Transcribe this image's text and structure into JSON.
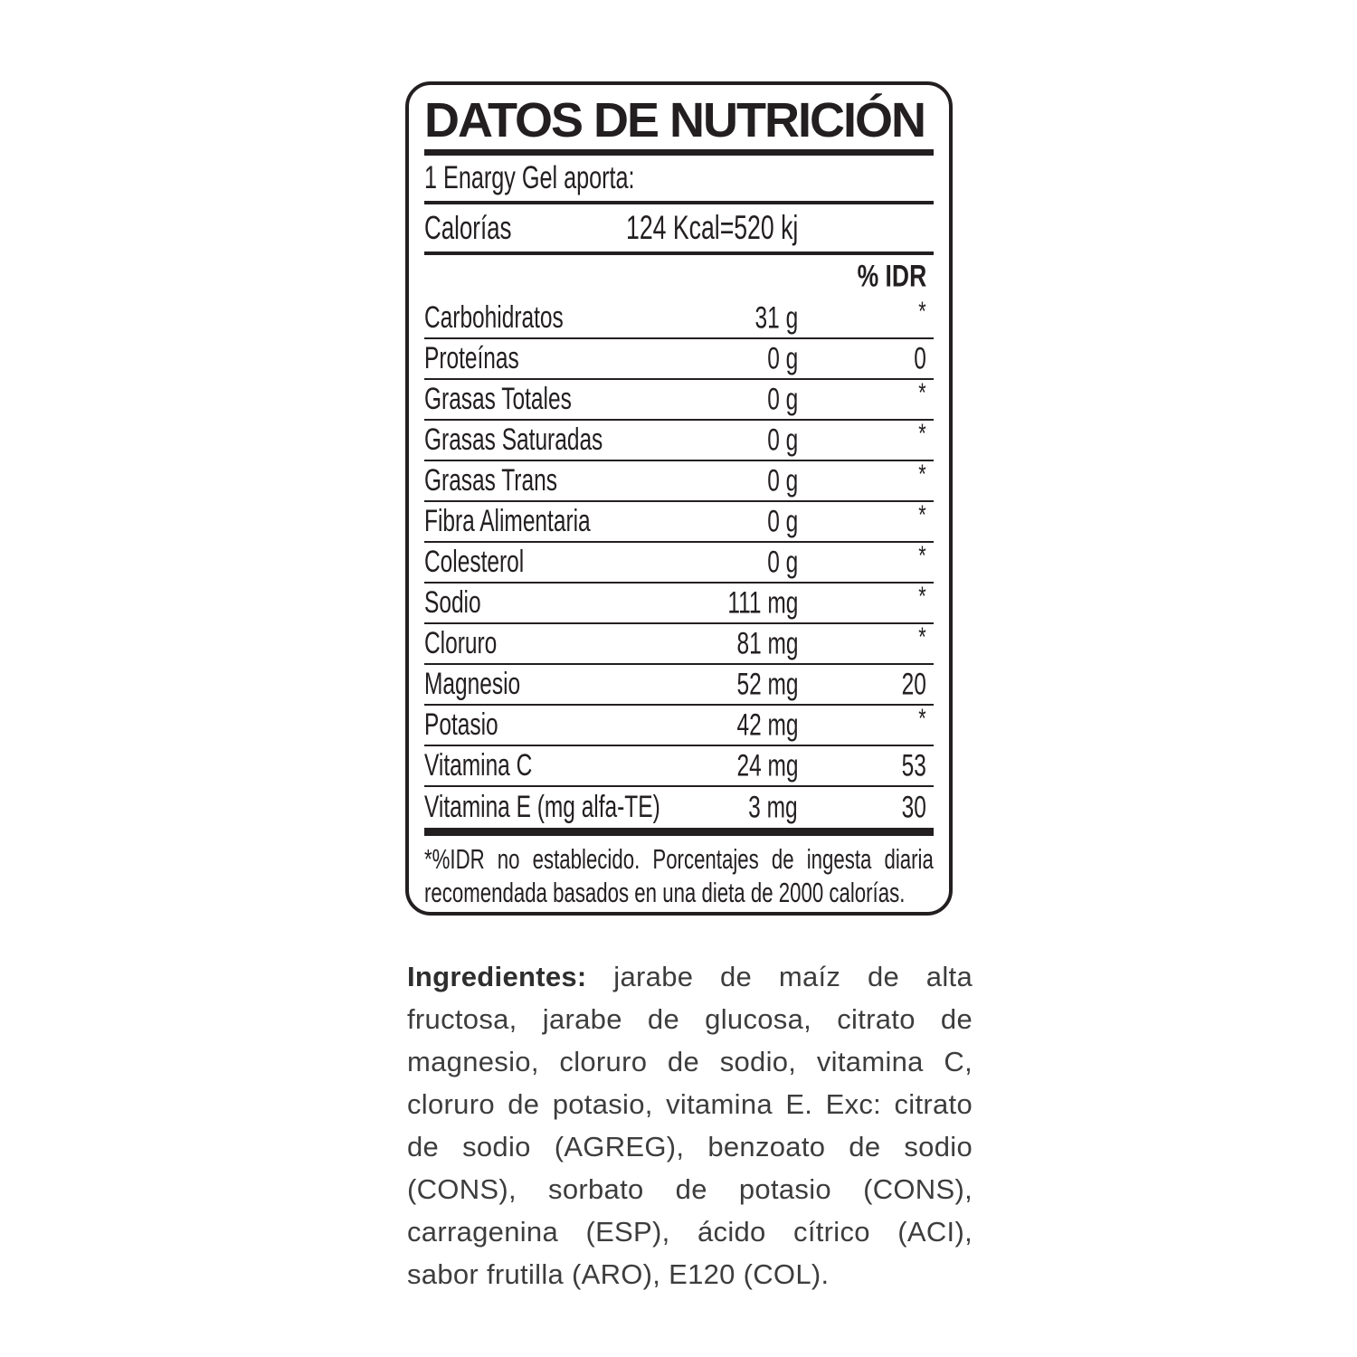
{
  "panel": {
    "title": "DATOS DE NUTRICIÓN",
    "serving": "1 Enargy Gel aporta:",
    "calories": {
      "label": "Calorías",
      "value": "124 Kcal=520 kj"
    },
    "idr_header": "% IDR",
    "rows": [
      {
        "label": "Carbohidratos",
        "amount": "31 g",
        "idr": "*"
      },
      {
        "label": "Proteínas",
        "amount": "0 g",
        "idr": "0"
      },
      {
        "label": "Grasas Totales",
        "amount": "0 g",
        "idr": "*"
      },
      {
        "label": "Grasas Saturadas",
        "amount": "0 g",
        "idr": "*"
      },
      {
        "label": "Grasas Trans",
        "amount": "0 g",
        "idr": "*"
      },
      {
        "label": "Fibra Alimentaria",
        "amount": "0 g",
        "idr": "*"
      },
      {
        "label": "Colesterol",
        "amount": "0 g",
        "idr": "*"
      },
      {
        "label": "Sodio",
        "amount": "111 mg",
        "idr": "*"
      },
      {
        "label": "Cloruro",
        "amount": "81 mg",
        "idr": "*"
      },
      {
        "label": "Magnesio",
        "amount": "52 mg",
        "idr": "20"
      },
      {
        "label": "Potasio",
        "amount": "42 mg",
        "idr": "*"
      },
      {
        "label": "Vitamina C",
        "amount": "24 mg",
        "idr": "53"
      },
      {
        "label": "Vitamina E (mg alfa-TE)",
        "amount": "3 mg",
        "idr": "30"
      }
    ],
    "footnote": "*%IDR no establecido. Porcentajes de ingesta diaria recomendada basados en una dieta de 2000 calorías."
  },
  "ingredients": {
    "label": "Ingredientes:",
    "text": " jarabe de maíz de alta fructosa, jarabe de glucosa, citrato de magnesio, cloruro de sodio, vitamina C, cloruro de potasio, vitamina E. Exc: citrato de sodio (AGREG), benzoato de sodio (CONS), sorbato de potasio (CONS), carragenina (ESP), ácido cítrico (ACI), sabor frutilla (ARO), E120 (COL)."
  },
  "colors": {
    "ink": "#231f20",
    "ingredients_text": "#3d3d3d",
    "background": "#ffffff"
  }
}
